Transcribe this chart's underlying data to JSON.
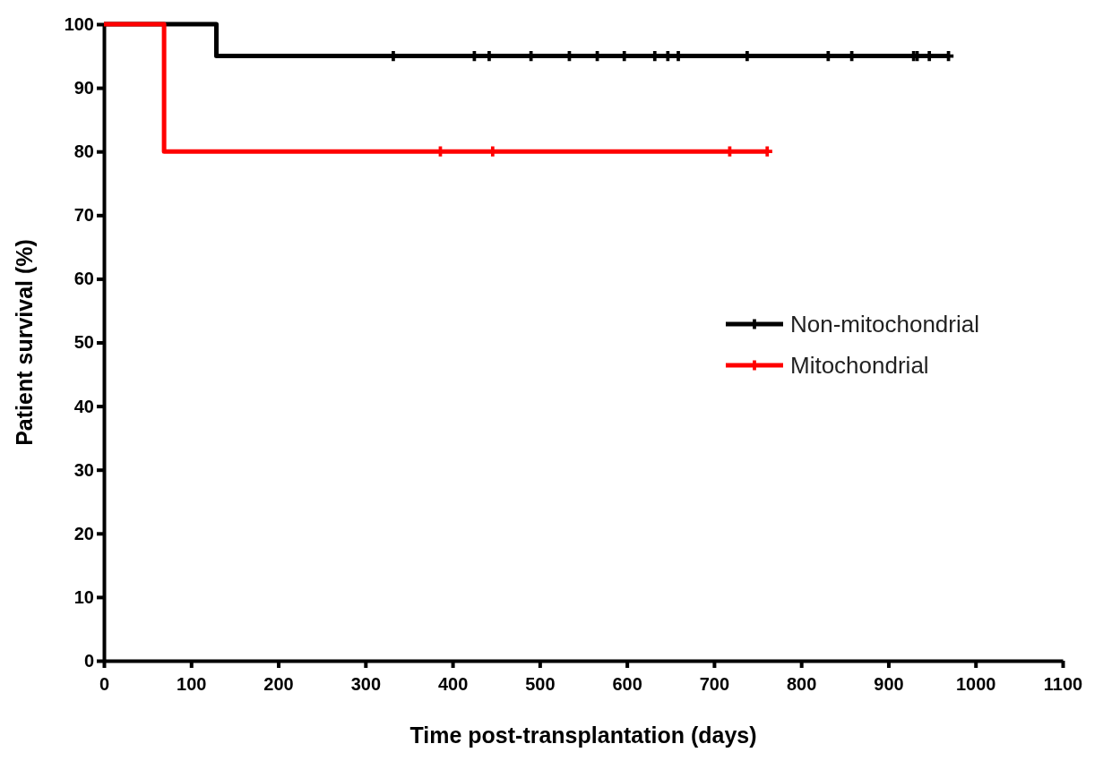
{
  "chart_data": {
    "type": "step",
    "xlabel": "Time post-transplantation (days)",
    "ylabel": "Patient survival (%)",
    "xlim": [
      0,
      1100
    ],
    "xticks": [
      0,
      100,
      200,
      300,
      400,
      500,
      600,
      700,
      800,
      900,
      1000,
      1100
    ],
    "ylim": [
      0,
      100
    ],
    "yticks": [
      0,
      10,
      20,
      30,
      40,
      50,
      60,
      70,
      80,
      90,
      100
    ],
    "grid": false,
    "legend": "right",
    "series": [
      {
        "name": "Non-mitochondrial",
        "color": "#000000",
        "x": [
          0,
          129,
          969
        ],
        "values": [
          100,
          95,
          95
        ]
      },
      {
        "name": "Mitochondrial",
        "color": "#ff0000",
        "x": [
          0,
          69,
          761
        ],
        "values": [
          100,
          80,
          80
        ]
      },
      {
        "type": "scatter",
        "marker": "cross",
        "color": "#000000",
        "x": [
          332,
          425,
          442,
          490,
          534,
          566,
          597,
          632,
          647,
          659,
          738,
          831,
          858,
          929,
          933,
          947,
          969
        ],
        "values": [
          95,
          95,
          95,
          95,
          95,
          95,
          95,
          95,
          95,
          95,
          95,
          95,
          95,
          95,
          95,
          95,
          95
        ]
      },
      {
        "type": "scatter",
        "marker": "cross",
        "color": "#ff0000",
        "x": [
          386,
          446,
          718,
          761
        ],
        "values": [
          80,
          80,
          80,
          80
        ]
      }
    ]
  }
}
